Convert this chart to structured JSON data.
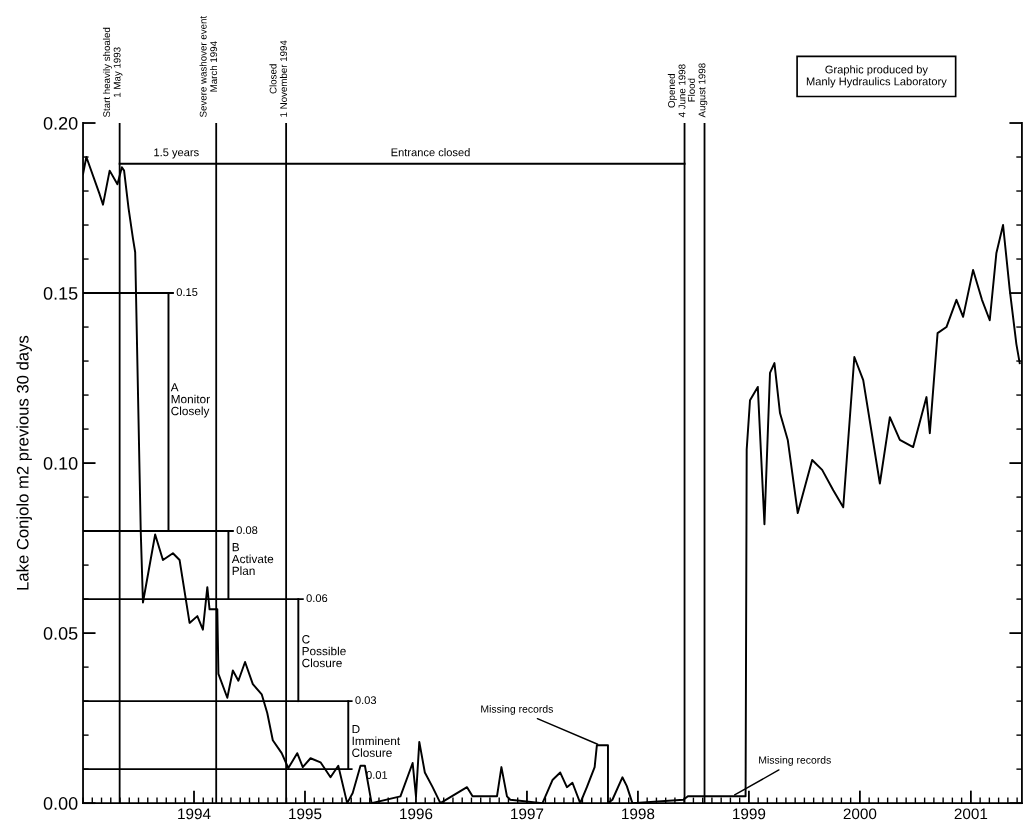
{
  "chart_data": {
    "type": "line",
    "ylabel": "Lake Conjolo m2 previous 30 days",
    "xlim": [
      1993,
      2001.46
    ],
    "ylim": [
      0,
      0.2
    ],
    "xticks": [
      1994,
      1995,
      1996,
      1997,
      1998,
      1999,
      2000,
      2001
    ],
    "yticks": [
      {
        "value": 0,
        "label": "0.00"
      },
      {
        "value": 0.05,
        "label": "0.05"
      },
      {
        "value": 0.1,
        "label": "0.10"
      },
      {
        "value": 0.15,
        "label": "0.15"
      },
      {
        "value": 0.2,
        "label": "0.20"
      }
    ],
    "grid": false,
    "marker": "none",
    "line_style": "solid",
    "series": [
      {
        "color": "#000000",
        "x": [
          1993.0,
          1993.03,
          1993.15,
          1993.18,
          1993.24,
          1993.31,
          1993.35,
          1993.37,
          1993.41,
          1993.45,
          1993.47,
          1993.52,
          1993.54,
          1993.65,
          1993.72,
          1993.81,
          1993.87,
          1993.96,
          1994.03,
          1994.08,
          1994.12,
          1994.14,
          1994.21,
          1994.22,
          1994.3,
          1994.35,
          1994.4,
          1994.46,
          1994.53,
          1994.61,
          1994.66,
          1994.71,
          1994.79,
          1994.85,
          1994.93,
          1994.98,
          1995.05,
          1995.14,
          1995.23,
          1995.3,
          1995.38,
          1995.43,
          1995.5,
          1995.54,
          1995.6,
          1995.86,
          1995.97,
          1996.0,
          1996.03,
          1996.08,
          1996.15,
          1996.22,
          1996.46,
          1996.51,
          1996.73,
          1996.77,
          1996.82,
          1996.85,
          1997.14,
          1997.23,
          1997.3,
          1997.36,
          1997.41,
          1997.48,
          1997.54,
          1997.61,
          1997.63,
          1997.73,
          1997.73,
          1997.77,
          1997.86,
          1997.9,
          1997.95,
          1998.41,
          1998.45,
          1998.97,
          1998.98,
          1999.01,
          1999.08,
          1999.14,
          1999.19,
          1999.23,
          1999.28,
          1999.35,
          1999.44,
          1999.57,
          1999.66,
          1999.76,
          1999.85,
          1999.95,
          2000.03,
          2000.18,
          2000.27,
          2000.36,
          2000.48,
          2000.6,
          2000.63,
          2000.7,
          2000.78,
          2000.87,
          2000.93,
          2001.02,
          2001.1,
          2001.17,
          2001.23,
          2001.29,
          2001.35,
          2001.41,
          2001.44
        ],
        "values": [
          0.185,
          0.19,
          0.179,
          0.176,
          0.186,
          0.182,
          0.187,
          0.186,
          0.175,
          0.166,
          0.162,
          0.08,
          0.059,
          0.079,
          0.0715,
          0.0735,
          0.0715,
          0.053,
          0.055,
          0.051,
          0.0635,
          0.057,
          0.057,
          0.038,
          0.031,
          0.039,
          0.036,
          0.0415,
          0.035,
          0.032,
          0.0265,
          0.0185,
          0.0147,
          0.0103,
          0.0147,
          0.0106,
          0.0132,
          0.012,
          0.0076,
          0.011,
          0.0,
          0.003,
          0.011,
          0.011,
          0.0,
          0.002,
          0.0118,
          0.002,
          0.018,
          0.009,
          0.0047,
          0.0,
          0.0047,
          0.002,
          0.002,
          0.0106,
          0.002,
          0.001,
          0.0,
          0.0068,
          0.009,
          0.0047,
          0.006,
          0.0,
          0.0047,
          0.0106,
          0.017,
          0.017,
          0.0,
          0.001,
          0.0076,
          0.005,
          0.0,
          0.001,
          0.002,
          0.002,
          0.104,
          0.1185,
          0.1224,
          0.082,
          0.1265,
          0.1294,
          0.1147,
          0.1068,
          0.0853,
          0.1009,
          0.098,
          0.092,
          0.087,
          0.1312,
          0.1244,
          0.094,
          0.1135,
          0.1068,
          0.1047,
          0.1194,
          0.1088,
          0.1382,
          0.14,
          0.148,
          0.143,
          0.1568,
          0.148,
          0.142,
          0.1618,
          0.17,
          0.151,
          0.135,
          0.1294
        ]
      },
      {
        "color": "#000000",
        "x": [
          1993.33,
          1998.42
        ],
        "values": [
          0.188,
          0.188
        ]
      },
      {
        "color": "#000000",
        "x": [
          1993.0,
          1993.81
        ],
        "values": [
          0.15,
          0.15
        ]
      },
      {
        "color": "#000000",
        "x": [
          1993.77,
          1993.77
        ],
        "values": [
          0.15,
          0.08
        ]
      },
      {
        "color": "#000000",
        "x": [
          1993.0,
          1994.35
        ],
        "values": [
          0.08,
          0.08
        ]
      },
      {
        "color": "#000000",
        "x": [
          1994.31,
          1994.31
        ],
        "values": [
          0.08,
          0.06
        ]
      },
      {
        "color": "#000000",
        "x": [
          1993.0,
          1994.98
        ],
        "values": [
          0.06,
          0.06
        ]
      },
      {
        "color": "#000000",
        "x": [
          1994.94,
          1994.94
        ],
        "values": [
          0.06,
          0.03
        ]
      },
      {
        "color": "#000000",
        "x": [
          1993.0,
          1995.42
        ],
        "values": [
          0.03,
          0.03
        ]
      },
      {
        "color": "#000000",
        "x": [
          1995.39,
          1995.39
        ],
        "values": [
          0.03,
          0.01
        ]
      },
      {
        "color": "#000000",
        "x": [
          1993.0,
          1995.42
        ],
        "values": [
          0.01,
          0.01
        ]
      }
    ],
    "ref_lines": [
      {
        "axis": "x",
        "value": 1993.33,
        "label": "Start heavily shoaled\n1 May 1993",
        "color": "#000000"
      },
      {
        "axis": "x",
        "value": 1994.2,
        "label": "Severe washover event\nMarch 1994",
        "color": "#000000"
      },
      {
        "axis": "x",
        "value": 1994.83,
        "label": "Closed\n1 November 1994",
        "color": "#000000"
      },
      {
        "axis": "x",
        "value": 1998.42,
        "label": "Opened\n4 June 1998",
        "color": "#000000"
      },
      {
        "axis": "x",
        "value": 1998.6,
        "label": "Flood\nAugust 1998",
        "color": "#000000"
      }
    ],
    "annotations": [
      "1.5 years",
      "Entrance closed",
      {
        "text": "0.15",
        "x": 1993.84,
        "y": 0.15
      },
      {
        "text": "0.08",
        "x": 1994.38,
        "y": 0.08
      },
      {
        "text": "0.06",
        "x": 1995.01,
        "y": 0.06
      },
      {
        "text": "0.03",
        "x": 1995.45,
        "y": 0.03
      },
      {
        "text": "0.01",
        "x": 1995.55,
        "y": 0.008
      },
      {
        "text": "A\nMonitor\nClosely",
        "x": 1993.79,
        "y": 0.1185
      },
      {
        "text": "B\nActivate\nPlan",
        "x": 1994.34,
        "y": 0.0715
      },
      {
        "text": "C\nPossible\nClosure",
        "x": 1994.97,
        "y": 0.0444
      },
      {
        "text": "D\nImminent\nClosure",
        "x": 1995.42,
        "y": 0.018
      },
      {
        "text": "Missing records",
        "x": 1997.66,
        "y": 0.017
      },
      {
        "text": "Missing records",
        "x": 1998.85,
        "y": 0.002
      },
      "Graphic produced by\nManly Hydraulics Laboratory"
    ]
  }
}
